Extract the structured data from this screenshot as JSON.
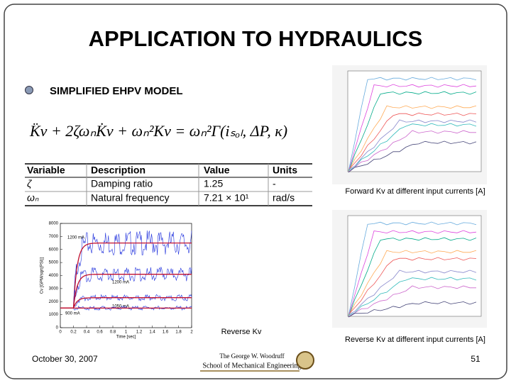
{
  "title": "APPLICATION TO HYDRAULICS",
  "bullet": "SIMPLIFIED EHPV MODEL",
  "equation": "K̈v + 2ζωₙK̇v + ωₙ²Kv = ωₙ²Γ(iₛₒₗ, ΔP, κ)",
  "table": {
    "header": [
      "Variable",
      "Description",
      "Value",
      "Units"
    ],
    "rows": [
      [
        "ζ",
        "Damping ratio",
        "1.25",
        "-"
      ],
      [
        "ωₙ",
        "Natural frequency",
        "7.21 × 10¹",
        "rad/s"
      ]
    ]
  },
  "time_plot": {
    "xlabel": "Time [sec]",
    "ylabel": "Cv [GPM/sqrt(PSI)]",
    "xlim": [
      0,
      2
    ],
    "ylim": [
      0,
      8000
    ],
    "xticks": [
      0,
      0.2,
      0.4,
      0.6,
      0.8,
      1,
      1.2,
      1.4,
      1.6,
      1.8,
      2
    ],
    "yticks": [
      0,
      1000,
      2000,
      3000,
      4000,
      5000,
      6000,
      7000,
      8000
    ],
    "curves": [
      {
        "label": "1200 mA",
        "level": 6500
      },
      {
        "label": "1200 mA",
        "level": 4100
      },
      {
        "label": "1050 mA",
        "level": 2300
      },
      {
        "label": "900 mA",
        "level": 1500
      }
    ]
  },
  "captions": {
    "time_plot": "Reverse Kv",
    "forward": "Forward Kv at different input currents [A]",
    "reverse": "Reverse Kv at different input currents [A]"
  },
  "footer": {
    "date": "October 30, 2007",
    "logo_line1": "The George W. Woodruff",
    "logo_line2": "School of Mechanical Engineering",
    "page": "51"
  }
}
